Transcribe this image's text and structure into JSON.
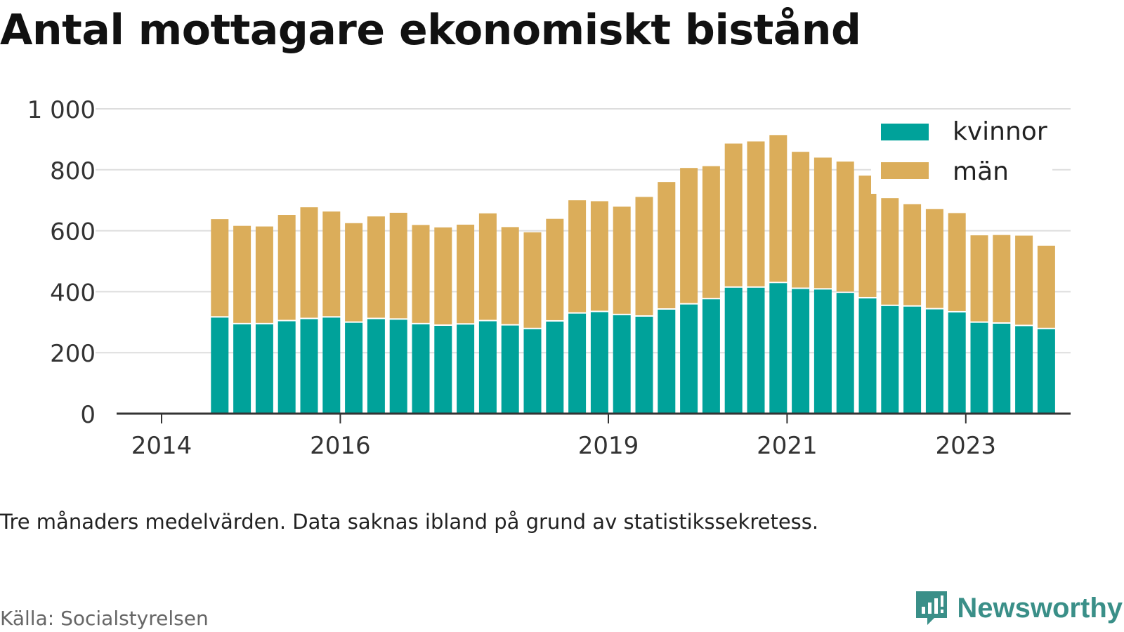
{
  "title": "Antal mottagare ekonomiskt bistånd",
  "caption": "Tre månaders medelvärden. Data saknas ibland på grund av statistikssekretess.",
  "source": "Källa: Socialstyrelsen",
  "brand": {
    "name": "Newsworthy",
    "logo_icon": "newsworthy-logo-icon"
  },
  "colors": {
    "kvinnor": "#00a29a",
    "man": "#dbad5a",
    "grid": "#dddddd",
    "axis": "#333333"
  },
  "chart_data": {
    "type": "bar",
    "stacked": true,
    "y_ticks": [
      "0",
      "200",
      "400",
      "600",
      "800",
      "1 000"
    ],
    "y_tick_values": [
      0,
      200,
      400,
      600,
      800,
      1000
    ],
    "ylim": [
      0,
      1000
    ],
    "x_ticks": [
      "2014",
      "2016",
      "2019",
      "2021",
      "2023"
    ],
    "x_tick_values": [
      "2014-01",
      "2016-01",
      "2019-01",
      "2021-01",
      "2023-01"
    ],
    "grid": true,
    "legend_position": "top-right",
    "categories": [
      "2014-09",
      "2014-12",
      "2015-03",
      "2015-06",
      "2015-09",
      "2015-12",
      "2016-03",
      "2016-06",
      "2016-09",
      "2016-12",
      "2017-03",
      "2017-06",
      "2017-09",
      "2017-12",
      "2018-03",
      "2018-06",
      "2018-09",
      "2018-12",
      "2019-03",
      "2019-06",
      "2019-09",
      "2019-12",
      "2020-03",
      "2020-06",
      "2020-09",
      "2020-12",
      "2021-03",
      "2021-06",
      "2021-09",
      "2021-12",
      "2022-03",
      "2022-06",
      "2022-09",
      "2022-12",
      "2023-03",
      "2023-06",
      "2023-09",
      "2023-12"
    ],
    "series": [
      {
        "name": "kvinnor",
        "values": [
          315,
          293,
          293,
          303,
          310,
          315,
          298,
          310,
          308,
          293,
          288,
          292,
          303,
          289,
          277,
          302,
          328,
          333,
          323,
          318,
          341,
          358,
          375,
          413,
          413,
          428,
          409,
          407,
          396,
          378,
          353,
          351,
          342,
          332,
          298,
          295,
          287,
          277
        ]
      },
      {
        "name": "män",
        "values": [
          323,
          323,
          321,
          349,
          367,
          348,
          327,
          337,
          351,
          326,
          323,
          328,
          354,
          323,
          318,
          337,
          372,
          364,
          356,
          393,
          419,
          448,
          437,
          473,
          480,
          486,
          450,
          433,
          431,
          403,
          354,
          336,
          329,
          326,
          287,
          291,
          297,
          274
        ]
      }
    ]
  }
}
